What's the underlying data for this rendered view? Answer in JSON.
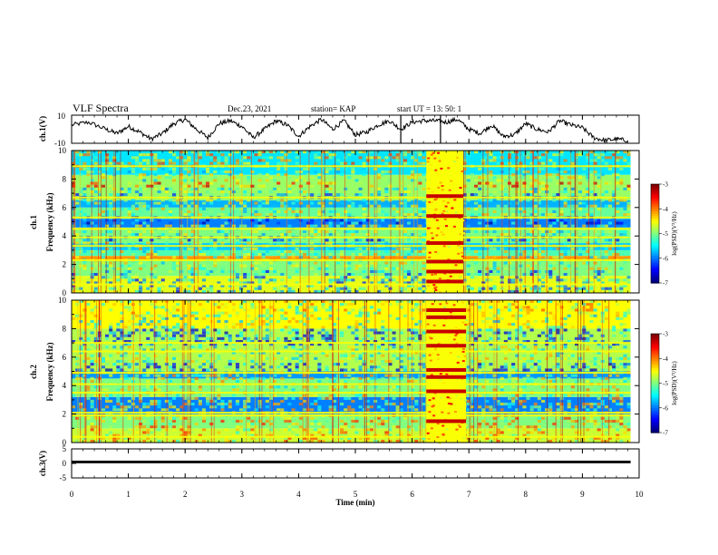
{
  "header": {
    "title": "VLF Spectra",
    "date": "Dec.23, 2021",
    "station": "station= KAP",
    "start_time": "start  UT =   13: 50: 1"
  },
  "chart_data": [
    {
      "type": "line",
      "panel": "ch1-waveform",
      "ylabel": "ch.1(V)",
      "ylim": [
        -10,
        10
      ],
      "yticks": [
        "10",
        "-10"
      ],
      "xlim": [
        0,
        10
      ],
      "x": [
        0,
        0.3,
        0.6,
        0.8,
        1.0,
        1.2,
        1.4,
        1.6,
        1.8,
        2.0,
        2.2,
        2.4,
        2.6,
        2.8,
        3.0,
        3.2,
        3.4,
        3.6,
        3.8,
        4.0,
        4.2,
        4.4,
        4.6,
        4.8,
        5.0,
        5.2,
        5.4,
        5.6,
        5.8,
        6.0,
        6.2,
        6.4,
        6.6,
        6.8,
        7.0,
        7.2,
        7.4,
        7.6,
        7.8,
        8.0,
        8.2,
        8.4,
        8.6,
        8.8,
        9.0,
        9.2,
        9.4,
        9.6,
        9.8
      ],
      "y": [
        3,
        5,
        0,
        -3,
        2,
        -2,
        -7,
        -3,
        4,
        7,
        0,
        -6,
        4,
        6,
        2,
        -6,
        0,
        6,
        3,
        -5,
        2,
        7,
        0,
        6,
        -4,
        -2,
        3,
        6,
        0,
        5,
        6,
        6,
        5,
        7,
        0,
        -3,
        3,
        -5,
        -4,
        4,
        0,
        -2,
        6,
        3,
        1,
        -6,
        -8,
        -7,
        -8
      ]
    },
    {
      "type": "heatmap",
      "panel": "ch1-spectrogram",
      "ylabel": "ch.1\nFrequency (kHz)",
      "ylim": [
        0,
        10
      ],
      "yticks": [
        "0",
        "2",
        "4",
        "6",
        "8",
        "10"
      ],
      "xlim": [
        0,
        9.85
      ],
      "burst_interval_min": [
        6.25,
        6.9
      ],
      "colorbar": {
        "label": "log(PSD)(V²/Hz)",
        "min": -7,
        "max": -3,
        "ticks": [
          "-3",
          "-4",
          "-5",
          "-6",
          "-7"
        ]
      },
      "bands_khz": [
        {
          "f0": 0,
          "f1": 1.2,
          "level": -4.6
        },
        {
          "f0": 1.2,
          "f1": 2.3,
          "level": -5.0
        },
        {
          "f0": 2.3,
          "f1": 2.6,
          "level": -4.1
        },
        {
          "f0": 2.6,
          "f1": 3.0,
          "level": -5.2
        },
        {
          "f0": 3.0,
          "f1": 3.5,
          "level": -5.7
        },
        {
          "f0": 3.5,
          "f1": 4.6,
          "level": -5.0
        },
        {
          "f0": 4.6,
          "f1": 5.2,
          "level": -6.0
        },
        {
          "f0": 5.2,
          "f1": 6.0,
          "level": -5.1
        },
        {
          "f0": 6.0,
          "f1": 6.5,
          "level": -5.8
        },
        {
          "f0": 6.5,
          "f1": 8.3,
          "level": -4.9
        },
        {
          "f0": 8.3,
          "f1": 10,
          "level": -5.6
        }
      ],
      "lines_khz": [
        0.6,
        2.3,
        3.3,
        3.9,
        4.5,
        5.3,
        6.7,
        8.9
      ],
      "burst_lines_khz": [
        0.8,
        1.5,
        2.2,
        3.5,
        5.4,
        6.8
      ]
    },
    {
      "type": "heatmap",
      "panel": "ch2-spectrogram",
      "ylabel": "ch.2\nFrequency (kHz)",
      "ylim": [
        0,
        10
      ],
      "yticks": [
        "0",
        "2",
        "4",
        "6",
        "8",
        "10"
      ],
      "xlim": [
        0,
        9.85
      ],
      "burst_interval_min": [
        6.25,
        6.95
      ],
      "colorbar": {
        "label": "log(PSD)(V²/Hz)",
        "min": -7,
        "max": -3,
        "ticks": [
          "-3",
          "-4",
          "-5",
          "-6",
          "-7"
        ]
      },
      "bands_khz": [
        {
          "f0": 0,
          "f1": 1.0,
          "level": -4.7
        },
        {
          "f0": 1.0,
          "f1": 2.0,
          "level": -5.0
        },
        {
          "f0": 2.0,
          "f1": 3.2,
          "level": -6.0
        },
        {
          "f0": 3.2,
          "f1": 4.5,
          "level": -5.0
        },
        {
          "f0": 4.5,
          "f1": 5.0,
          "level": -5.9
        },
        {
          "f0": 5.0,
          "f1": 8.0,
          "level": -4.8
        },
        {
          "f0": 8.0,
          "f1": 10,
          "level": -4.5
        }
      ],
      "lines_khz": [
        0.4,
        1.9,
        2.1,
        3.5,
        4.1,
        4.9,
        6.4,
        7.0
      ],
      "burst_lines_khz": [
        1.5,
        3.6,
        4.6,
        5.1,
        6.8,
        7.8,
        8.8,
        9.3
      ]
    },
    {
      "type": "line",
      "panel": "ch3-waveform",
      "ylabel": "ch.3(V)",
      "ylim": [
        -5,
        5
      ],
      "yticks": [
        "5",
        "0",
        "-5"
      ],
      "xlim": [
        0,
        10
      ],
      "xlabel": "Time (min)",
      "xticks": [
        "0",
        "1",
        "2",
        "3",
        "4",
        "5",
        "6",
        "7",
        "8",
        "9",
        "10"
      ],
      "band_center_v": 0.5,
      "band_halfwidth_v": 0.45
    }
  ]
}
